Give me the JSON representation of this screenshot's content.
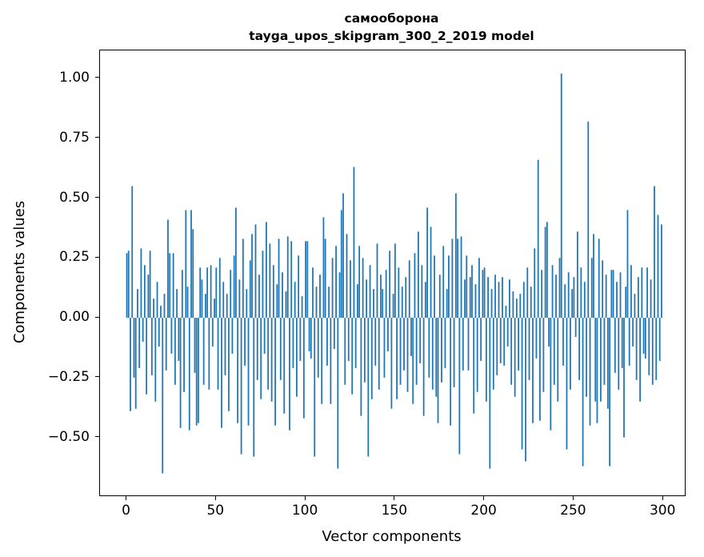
{
  "chart_data": {
    "type": "bar",
    "title": "самооборона",
    "subtitle": "tayga_upos_skipgram_300_2_2019 model",
    "xlabel": "Vector components",
    "ylabel": "Components values",
    "xlim": [
      -15,
      312
    ],
    "ylim": [
      -0.742,
      1.117
    ],
    "bar_width": 0.8,
    "color": "#1f77b4",
    "grid": false,
    "legend": "none",
    "yticks": [
      {
        "label": "1.00",
        "value": 1.0
      },
      {
        "label": "0.75",
        "value": 0.75
      },
      {
        "label": "0.50",
        "value": 0.5
      },
      {
        "label": "0.25",
        "value": 0.25
      },
      {
        "label": "0.00",
        "value": 0.0
      },
      {
        "label": "−0.25",
        "value": -0.25
      },
      {
        "label": "−0.50",
        "value": -0.5
      }
    ],
    "xticks": [
      {
        "label": "0",
        "value": 0
      },
      {
        "label": "50",
        "value": 50
      },
      {
        "label": "100",
        "value": 100
      },
      {
        "label": "150",
        "value": 150
      },
      {
        "label": "200",
        "value": 200
      },
      {
        "label": "250",
        "value": 250
      },
      {
        "label": "300",
        "value": 300
      }
    ],
    "x_start": 0,
    "values": [
      0.27,
      0.28,
      -0.39,
      0.55,
      -0.25,
      -0.38,
      0.12,
      -0.21,
      0.29,
      -0.1,
      0.22,
      -0.32,
      0.18,
      0.28,
      -0.24,
      0.08,
      -0.35,
      0.15,
      -0.12,
      0.05,
      -0.65,
      0.1,
      -0.22,
      0.41,
      0.27,
      -0.15,
      0.27,
      -0.28,
      0.12,
      -0.18,
      -0.46,
      0.2,
      -0.31,
      0.45,
      0.13,
      -0.47,
      0.45,
      0.37,
      -0.23,
      -0.45,
      -0.44,
      0.21,
      0.16,
      -0.28,
      0.1,
      0.21,
      -0.3,
      0.22,
      -0.12,
      0.08,
      0.21,
      -0.3,
      0.25,
      -0.46,
      0.15,
      -0.24,
      0.1,
      -0.39,
      0.2,
      -0.15,
      0.26,
      0.46,
      -0.44,
      0.16,
      -0.57,
      0.33,
      -0.2,
      0.12,
      -0.45,
      0.24,
      0.35,
      -0.58,
      0.39,
      -0.26,
      0.18,
      -0.34,
      0.28,
      -0.15,
      0.4,
      -0.3,
      0.31,
      -0.35,
      0.22,
      -0.45,
      0.14,
      0.33,
      -0.26,
      0.19,
      -0.4,
      0.11,
      0.34,
      -0.47,
      0.32,
      -0.21,
      0.15,
      -0.33,
      0.26,
      -0.18,
      0.09,
      -0.42,
      0.32,
      0.32,
      -0.14,
      -0.17,
      0.21,
      -0.58,
      0.13,
      -0.25,
      0.18,
      -0.36,
      0.42,
      0.33,
      -0.2,
      0.13,
      -0.36,
      0.25,
      -0.13,
      0.3,
      -0.63,
      0.19,
      0.45,
      0.52,
      -0.28,
      0.35,
      -0.18,
      0.24,
      -0.32,
      0.63,
      -0.21,
      0.14,
      0.3,
      -0.41,
      0.25,
      -0.27,
      0.16,
      -0.58,
      0.22,
      -0.34,
      0.12,
      -0.2,
      0.31,
      -0.3,
      0.18,
      0.12,
      -0.25,
      0.2,
      -0.14,
      0.28,
      -0.38,
      0.1,
      0.31,
      -0.34,
      0.21,
      -0.28,
      0.13,
      -0.22,
      0.17,
      -0.31,
      0.24,
      -0.16,
      -0.36,
      0.27,
      -0.28,
      0.36,
      -0.19,
      0.22,
      -0.41,
      0.15,
      0.46,
      -0.25,
      0.38,
      -0.3,
      0.26,
      -0.33,
      -0.44,
      0.18,
      -0.27,
      0.3,
      -0.21,
      0.12,
      0.26,
      -0.45,
      0.33,
      -0.29,
      0.52,
      0.33,
      -0.57,
      0.34,
      -0.22,
      0.16,
      0.26,
      -0.22,
      0.17,
      0.22,
      -0.4,
      0.14,
      -0.31,
      0.25,
      -0.18,
      0.2,
      0.21,
      -0.35,
      0.17,
      -0.63,
      0.12,
      -0.3,
      0.18,
      -0.24,
      0.15,
      -0.19,
      0.17,
      -0.2,
      0.05,
      -0.12,
      0.16,
      -0.28,
      0.11,
      -0.33,
      0.08,
      -0.22,
      0.1,
      -0.55,
      0.15,
      -0.6,
      0.21,
      -0.26,
      0.13,
      -0.44,
      0.29,
      -0.17,
      0.66,
      -0.43,
      0.2,
      -0.31,
      0.38,
      0.4,
      -0.12,
      -0.47,
      0.22,
      -0.28,
      0.18,
      -0.35,
      0.25,
      1.02,
      -0.2,
      0.14,
      -0.55,
      0.19,
      -0.3,
      0.12,
      0.17,
      -0.08,
      0.36,
      -0.26,
      0.21,
      -0.62,
      0.15,
      -0.33,
      0.82,
      -0.45,
      0.25,
      0.35,
      -0.35,
      -0.44,
      0.33,
      -0.35,
      0.24,
      -0.28,
      0.18,
      -0.38,
      -0.62,
      0.2,
      0.2,
      -0.23,
      0.15,
      -0.3,
      0.19,
      -0.21,
      -0.5,
      0.13,
      0.45,
      -0.2,
      0.22,
      -0.12,
      0.1,
      -0.26,
      0.17,
      -0.35,
      0.21,
      -0.15,
      -0.17,
      0.21,
      -0.24,
      0.16,
      -0.28,
      0.55,
      -0.26,
      0.43,
      -0.18,
      0.39
    ]
  }
}
